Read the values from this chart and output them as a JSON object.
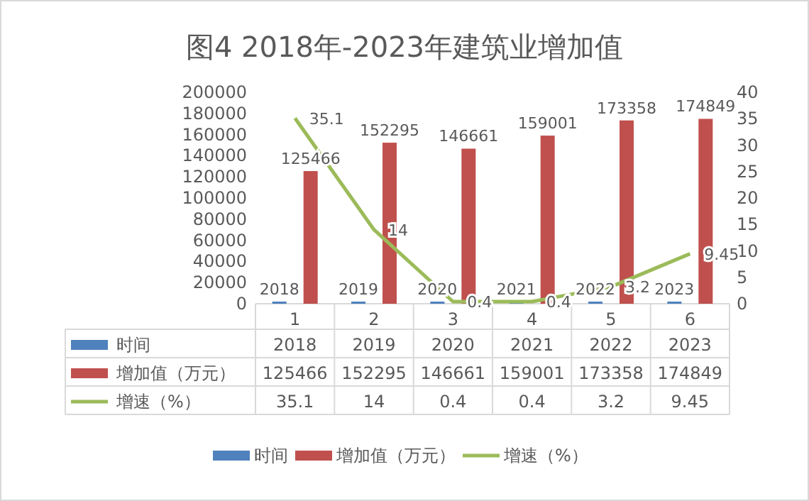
{
  "chart_data": {
    "type": "bar",
    "title": "图4 2018年-2023年建筑业增加值",
    "categories": [
      "1",
      "2",
      "3",
      "4",
      "5",
      "6"
    ],
    "series": [
      {
        "name": "时间",
        "color": "#4f81bd",
        "values": [
          2018,
          2019,
          2020,
          2021,
          2022,
          2023
        ]
      },
      {
        "name": "增加值（万元）",
        "color": "#c0504d",
        "values": [
          125466,
          152295,
          146661,
          159001,
          173358,
          174849
        ]
      },
      {
        "name": "增速（%）",
        "type": "line",
        "axis": "y2",
        "color": "#9bbb59",
        "values": [
          35.1,
          14,
          0.4,
          0.4,
          3.2,
          9.45
        ]
      }
    ],
    "ylim": [
      0,
      200000
    ],
    "yticks": [
      0,
      20000,
      40000,
      60000,
      80000,
      100000,
      120000,
      140000,
      160000,
      180000,
      200000
    ],
    "y2lim": [
      0,
      40
    ],
    "y2ticks": [
      0,
      5,
      10,
      15,
      20,
      25,
      30,
      35,
      40
    ],
    "data_labels": true,
    "legend": "bottom",
    "grid": false,
    "marker": "none",
    "annotations": [
      "2018",
      "2019",
      "2020",
      "2021",
      "2022",
      "2023",
      "125466",
      "152295",
      "146661",
      "159001",
      "173358",
      "174849",
      "35.1",
      "14",
      "0.4",
      "0.4",
      "3.2",
      "9.45"
    ]
  }
}
